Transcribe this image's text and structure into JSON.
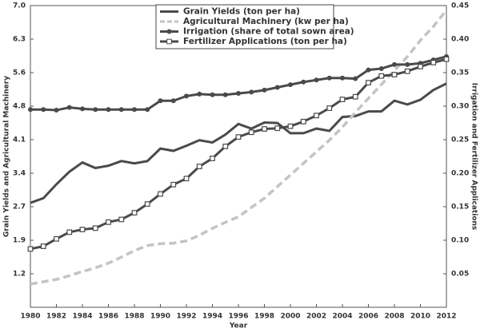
{
  "chart_data": {
    "type": "line",
    "x_label": "Year",
    "y_label": "Grain Yields and Agricultural Machinery",
    "y2_label": "Irrigation and Fertilizer Applications",
    "x": [
      1980,
      1981,
      1982,
      1983,
      1984,
      1985,
      1986,
      1987,
      1988,
      1989,
      1990,
      1991,
      1992,
      1993,
      1994,
      1995,
      1996,
      1997,
      1998,
      1999,
      2000,
      2001,
      2002,
      2003,
      2004,
      2005,
      2006,
      2007,
      2008,
      2009,
      2010,
      2011,
      2012
    ],
    "xlim": [
      1980,
      2012
    ],
    "xticks": [
      1980,
      1982,
      1984,
      1986,
      1988,
      1990,
      1992,
      1994,
      1996,
      1998,
      2000,
      2002,
      2004,
      2006,
      2008,
      2010,
      2012
    ],
    "ylim": [
      0.5,
      7.0
    ],
    "yticks": [
      {
        "value": 1.222,
        "label": "1.2"
      },
      {
        "value": 1.944,
        "label": "1.9"
      },
      {
        "value": 2.667,
        "label": "2.7"
      },
      {
        "value": 3.389,
        "label": "3.4"
      },
      {
        "value": 4.111,
        "label": "4.1"
      },
      {
        "value": 4.833,
        "label": "4.8"
      },
      {
        "value": 5.556,
        "label": "5.6"
      },
      {
        "value": 6.278,
        "label": "6.3"
      },
      {
        "value": 7,
        "label": "7.0"
      }
    ],
    "y2lim": [
      0,
      0.45
    ],
    "y2ticks": [
      0.05,
      {
        "value": 0.1,
        "label": "0.10"
      },
      0.15,
      {
        "value": 0.2,
        "label": "0.20"
      },
      0.25,
      {
        "value": 0.3,
        "label": "0.30"
      },
      0.35,
      {
        "value": 0.4,
        "label": "0.40"
      },
      0.45
    ],
    "legend": "top",
    "series": [
      {
        "name": "Grain Yields (ton per ha)",
        "color": "#4a4a4a",
        "dash": false,
        "marker": null,
        "values": [
          2.75,
          2.85,
          3.15,
          3.42,
          3.62,
          3.5,
          3.55,
          3.65,
          3.6,
          3.65,
          3.92,
          3.87,
          3.98,
          4.1,
          4.05,
          4.22,
          4.45,
          4.35,
          4.48,
          4.47,
          4.25,
          4.25,
          4.35,
          4.3,
          4.6,
          4.62,
          4.72,
          4.72,
          4.95,
          4.87,
          4.97,
          5.18,
          5.32
        ]
      },
      {
        "name": "Agricultural Machinery (kw per ha)",
        "color": "#c4c4c4",
        "dash": true,
        "marker": null,
        "values": [
          1.0,
          1.05,
          1.1,
          1.18,
          1.27,
          1.35,
          1.45,
          1.58,
          1.72,
          1.83,
          1.87,
          1.88,
          1.93,
          2.05,
          2.2,
          2.33,
          2.45,
          2.65,
          2.85,
          3.1,
          3.35,
          3.6,
          3.85,
          4.1,
          4.38,
          4.7,
          5.0,
          5.3,
          5.6,
          5.9,
          6.25,
          6.55,
          6.9
        ]
      },
      {
        "name": "Irrigation (share of total sown area)",
        "color": "#4a4a4a",
        "dash": false,
        "marker": "filled",
        "axis": "y2",
        "values": [
          0.295,
          0.295,
          0.294,
          0.298,
          0.296,
          0.295,
          0.295,
          0.295,
          0.295,
          0.295,
          0.308,
          0.308,
          0.315,
          0.318,
          0.317,
          0.317,
          0.319,
          0.321,
          0.324,
          0.328,
          0.332,
          0.336,
          0.339,
          0.342,
          0.342,
          0.341,
          0.354,
          0.356,
          0.362,
          0.362,
          0.364,
          0.369,
          0.374
        ]
      },
      {
        "name": "Fertilizer Applications (ton per ha)",
        "color": "#4a4a4a",
        "dash": false,
        "marker": "open",
        "axis": "y2",
        "values": [
          0.087,
          0.091,
          0.102,
          0.112,
          0.116,
          0.118,
          0.127,
          0.131,
          0.141,
          0.154,
          0.169,
          0.183,
          0.192,
          0.21,
          0.222,
          0.24,
          0.254,
          0.261,
          0.266,
          0.267,
          0.27,
          0.277,
          0.286,
          0.297,
          0.31,
          0.314,
          0.335,
          0.345,
          0.347,
          0.352,
          0.359,
          0.365,
          0.37
        ]
      }
    ]
  }
}
